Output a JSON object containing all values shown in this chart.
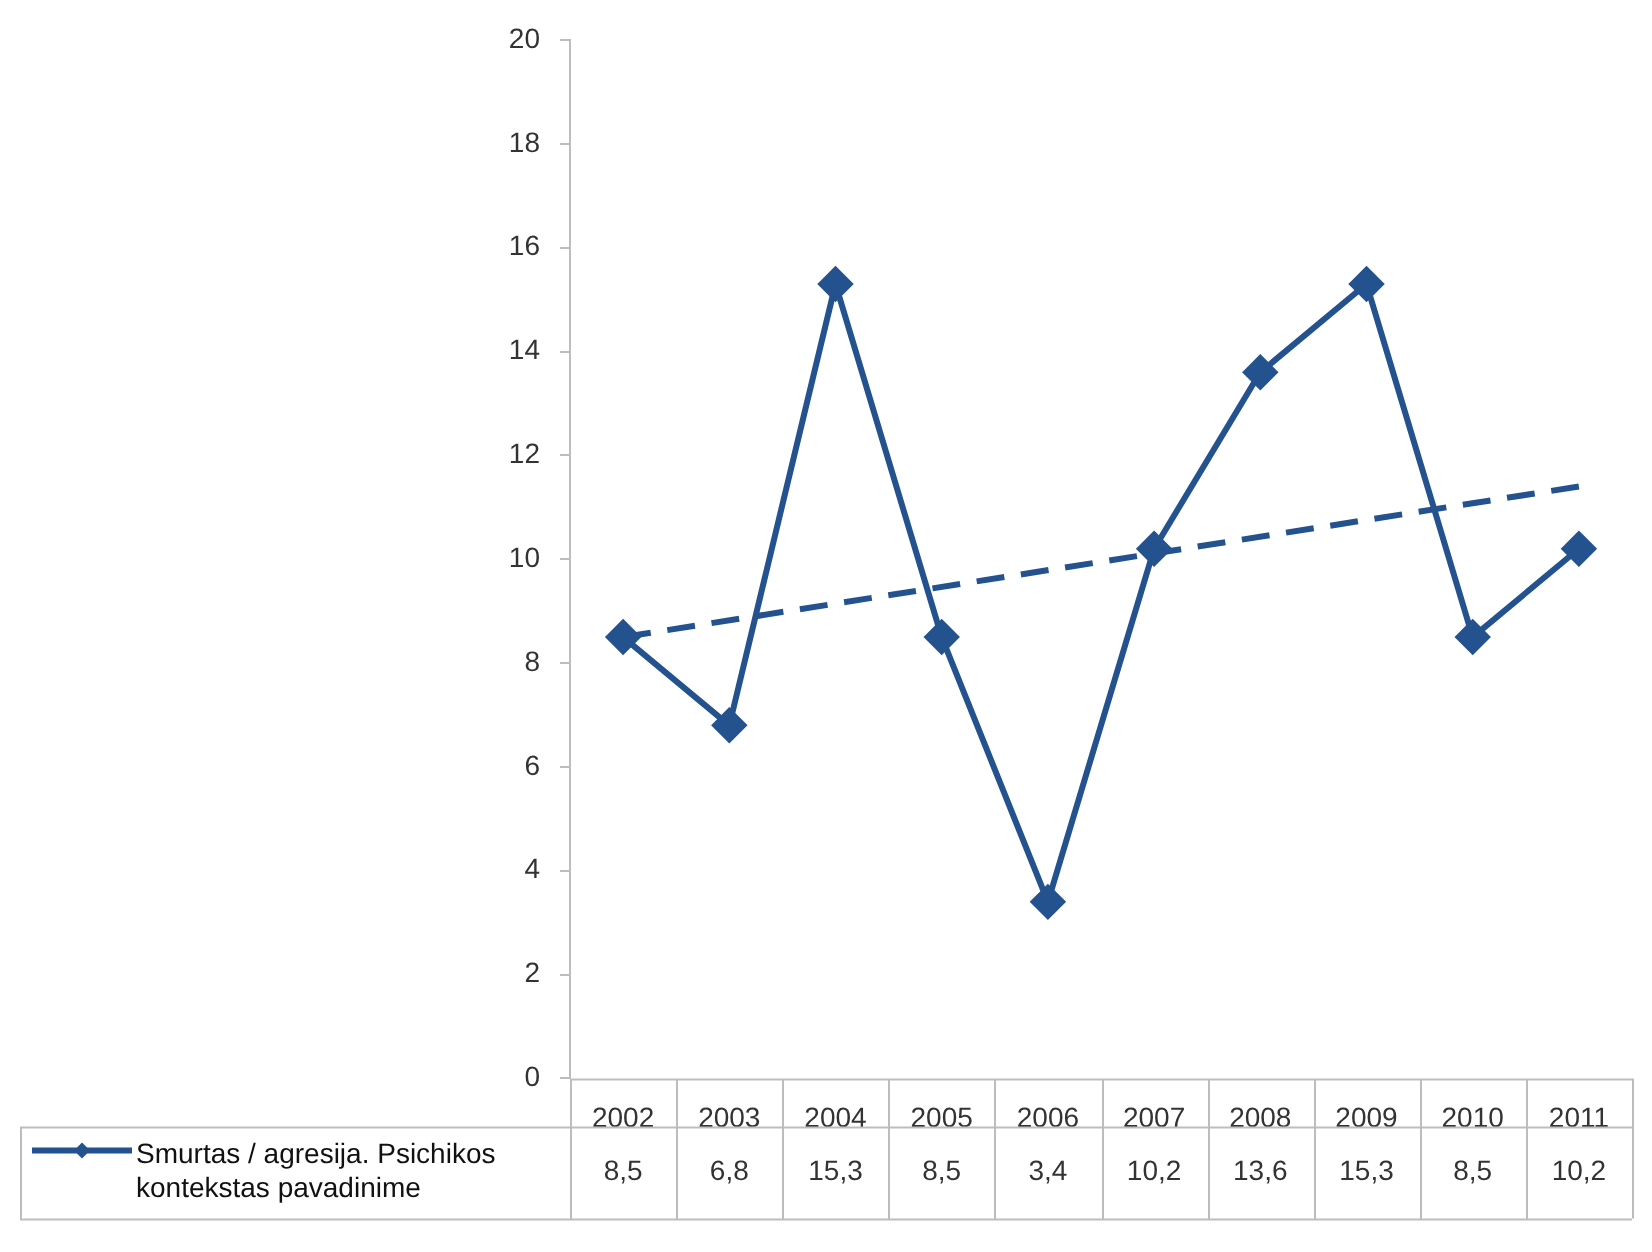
{
  "chart_data": {
    "type": "line",
    "categories": [
      "2002",
      "2003",
      "2004",
      "2005",
      "2006",
      "2007",
      "2008",
      "2009",
      "2010",
      "2011"
    ],
    "series": [
      {
        "name": "Smurtas / agresija. Psichikos kontekstas pavadinime",
        "color": "#24528f",
        "values": [
          8.5,
          6.8,
          15.3,
          8.5,
          3.4,
          10.2,
          13.6,
          15.3,
          8.5,
          10.2
        ],
        "value_labels": [
          "8,5",
          "6,8",
          "15,3",
          "8,5",
          "3,4",
          "10,2",
          "13,6",
          "15,3",
          "8,5",
          "10,2"
        ],
        "marker": "diamond",
        "line_style": "solid"
      },
      {
        "type": "line",
        "color": "#24528f",
        "values": [
          8.5,
          null,
          null,
          null,
          null,
          null,
          null,
          null,
          null,
          11.4
        ],
        "marker": "none",
        "line_style": "dashed"
      }
    ],
    "ylim": [
      0,
      20
    ],
    "yticks": [
      0,
      2,
      4,
      6,
      8,
      10,
      12,
      14,
      16,
      18,
      20
    ],
    "grid": false,
    "legend": "bottom left"
  }
}
